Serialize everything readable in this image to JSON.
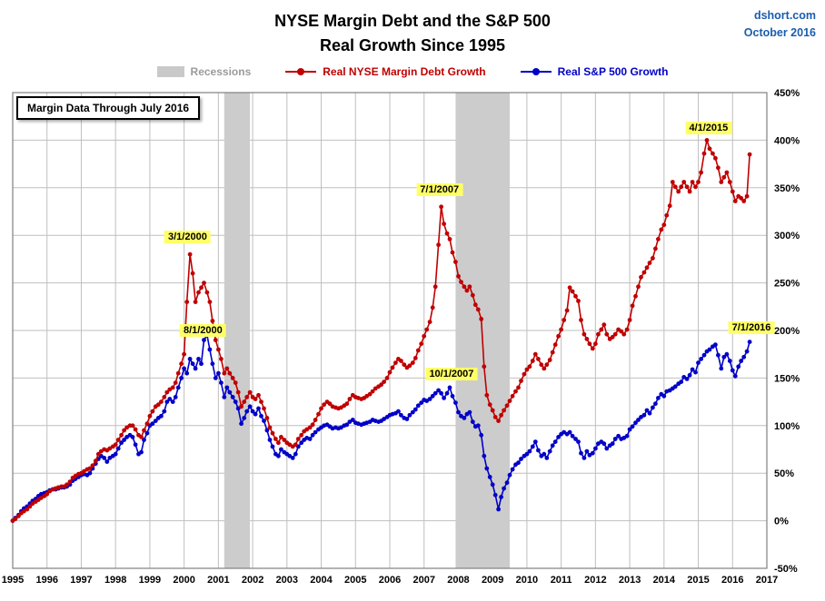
{
  "header": {
    "title_line1": "NYSE Margin Debt and the S&P 500",
    "title_line2": "Real Growth Since 1995",
    "source_site": "dshort.com",
    "source_date": "October 2016"
  },
  "legend": {
    "recessions_label": "Recessions",
    "margin_label": "Real NYSE Margin Debt Growth",
    "sp500_label": "Real S&P 500 Growth"
  },
  "callout_box": "Margin Data Through July 2016",
  "colors": {
    "margin_series": "#C00000",
    "sp500_series": "#0000C8",
    "recession_band": "#CCCCCC",
    "gridline": "#BFBFBF",
    "plot_border": "#808080",
    "annotation_bg": "#FFFF66",
    "source_text": "#1A5DAD"
  },
  "chart_data": {
    "type": "line",
    "title": "NYSE Margin Debt and the S&P 500 — Real Growth Since 1995",
    "xlabel": "",
    "ylabel": "",
    "grid": true,
    "legend_position": "top",
    "xlim": [
      1995,
      2017
    ],
    "ylim": [
      -50,
      450
    ],
    "y_tick_step": 50,
    "y_tick_suffix": "%",
    "y_axis_side": "right",
    "x_ticks": [
      1995,
      1996,
      1997,
      1998,
      1999,
      2000,
      2001,
      2002,
      2003,
      2004,
      2005,
      2006,
      2007,
      2008,
      2009,
      2010,
      2011,
      2012,
      2013,
      2014,
      2015,
      2016,
      2017
    ],
    "recessions": [
      [
        2001.17,
        2001.92
      ],
      [
        2007.92,
        2009.5
      ]
    ],
    "columns": [
      "year_decimal",
      "real_margin_debt_growth_pct",
      "real_sp500_growth_pct"
    ],
    "series": [
      {
        "name": "Real NYSE Margin Debt Growth",
        "color": "#C00000",
        "column": 1
      },
      {
        "name": "Real S&P 500 Growth",
        "color": "#0000C8",
        "column": 2
      }
    ],
    "annotations": [
      {
        "label": "3/1/2000",
        "x": 2000.1,
        "y": 298
      },
      {
        "label": "8/1/2000",
        "x": 2000.55,
        "y": 200
      },
      {
        "label": "7/1/2007",
        "x": 2007.45,
        "y": 348
      },
      {
        "label": "10/1/2007",
        "x": 2007.8,
        "y": 154
      },
      {
        "label": "4/1/2015",
        "x": 2015.3,
        "y": 413
      },
      {
        "label": "7/1/2016",
        "x": 2016.55,
        "y": 203
      }
    ],
    "rows": [
      [
        1995.0,
        0,
        0
      ],
      [
        1995.08,
        2,
        3
      ],
      [
        1995.17,
        5,
        6
      ],
      [
        1995.25,
        8,
        10
      ],
      [
        1995.33,
        10,
        13
      ],
      [
        1995.42,
        12,
        15
      ],
      [
        1995.5,
        15,
        18
      ],
      [
        1995.58,
        18,
        21
      ],
      [
        1995.67,
        20,
        23
      ],
      [
        1995.75,
        22,
        26
      ],
      [
        1995.83,
        24,
        28
      ],
      [
        1995.92,
        26,
        29
      ],
      [
        1996.0,
        28,
        30
      ],
      [
        1996.08,
        31,
        32
      ],
      [
        1996.17,
        33,
        33
      ],
      [
        1996.25,
        34,
        33
      ],
      [
        1996.33,
        35,
        34
      ],
      [
        1996.42,
        36,
        35
      ],
      [
        1996.5,
        36,
        35
      ],
      [
        1996.58,
        38,
        36
      ],
      [
        1996.67,
        41,
        38
      ],
      [
        1996.75,
        45,
        42
      ],
      [
        1996.83,
        47,
        44
      ],
      [
        1996.92,
        49,
        46
      ],
      [
        1997.0,
        50,
        48
      ],
      [
        1997.08,
        52,
        49
      ],
      [
        1997.17,
        54,
        48
      ],
      [
        1997.25,
        55,
        50
      ],
      [
        1997.33,
        58,
        55
      ],
      [
        1997.42,
        63,
        60
      ],
      [
        1997.5,
        70,
        65
      ],
      [
        1997.58,
        73,
        68
      ],
      [
        1997.67,
        75,
        66
      ],
      [
        1997.75,
        74,
        62
      ],
      [
        1997.83,
        76,
        66
      ],
      [
        1997.92,
        78,
        68
      ],
      [
        1998.0,
        80,
        70
      ],
      [
        1998.08,
        85,
        76
      ],
      [
        1998.17,
        90,
        82
      ],
      [
        1998.25,
        95,
        85
      ],
      [
        1998.33,
        98,
        88
      ],
      [
        1998.42,
        100,
        90
      ],
      [
        1998.5,
        100,
        88
      ],
      [
        1998.58,
        96,
        80
      ],
      [
        1998.67,
        90,
        70
      ],
      [
        1998.75,
        88,
        72
      ],
      [
        1998.83,
        95,
        85
      ],
      [
        1998.92,
        102,
        92
      ],
      [
        1999.0,
        110,
        100
      ],
      [
        1999.08,
        115,
        102
      ],
      [
        1999.17,
        120,
        105
      ],
      [
        1999.25,
        122,
        108
      ],
      [
        1999.33,
        125,
        110
      ],
      [
        1999.42,
        130,
        115
      ],
      [
        1999.5,
        135,
        125
      ],
      [
        1999.58,
        138,
        128
      ],
      [
        1999.67,
        140,
        125
      ],
      [
        1999.75,
        145,
        130
      ],
      [
        1999.83,
        155,
        140
      ],
      [
        1999.92,
        165,
        150
      ],
      [
        2000.0,
        175,
        160
      ],
      [
        2000.08,
        230,
        155
      ],
      [
        2000.17,
        280,
        170
      ],
      [
        2000.25,
        260,
        165
      ],
      [
        2000.33,
        230,
        160
      ],
      [
        2000.42,
        240,
        170
      ],
      [
        2000.5,
        245,
        165
      ],
      [
        2000.58,
        250,
        190
      ],
      [
        2000.67,
        240,
        195
      ],
      [
        2000.75,
        230,
        180
      ],
      [
        2000.83,
        210,
        165
      ],
      [
        2000.92,
        190,
        150
      ],
      [
        2001.0,
        180,
        155
      ],
      [
        2001.08,
        170,
        145
      ],
      [
        2001.17,
        155,
        130
      ],
      [
        2001.25,
        160,
        140
      ],
      [
        2001.33,
        155,
        135
      ],
      [
        2001.42,
        150,
        130
      ],
      [
        2001.5,
        145,
        125
      ],
      [
        2001.58,
        135,
        118
      ],
      [
        2001.67,
        120,
        102
      ],
      [
        2001.75,
        125,
        108
      ],
      [
        2001.83,
        130,
        115
      ],
      [
        2001.92,
        135,
        120
      ],
      [
        2002.0,
        130,
        115
      ],
      [
        2002.08,
        128,
        112
      ],
      [
        2002.17,
        132,
        118
      ],
      [
        2002.25,
        125,
        110
      ],
      [
        2002.33,
        118,
        105
      ],
      [
        2002.42,
        108,
        95
      ],
      [
        2002.5,
        98,
        85
      ],
      [
        2002.58,
        92,
        78
      ],
      [
        2002.67,
        86,
        70
      ],
      [
        2002.75,
        82,
        68
      ],
      [
        2002.83,
        88,
        75
      ],
      [
        2002.92,
        85,
        72
      ],
      [
        2003.0,
        82,
        70
      ],
      [
        2003.08,
        80,
        68
      ],
      [
        2003.17,
        78,
        66
      ],
      [
        2003.25,
        80,
        70
      ],
      [
        2003.33,
        86,
        78
      ],
      [
        2003.42,
        90,
        82
      ],
      [
        2003.5,
        94,
        85
      ],
      [
        2003.58,
        96,
        87
      ],
      [
        2003.67,
        98,
        86
      ],
      [
        2003.75,
        101,
        90
      ],
      [
        2003.83,
        106,
        93
      ],
      [
        2003.92,
        112,
        96
      ],
      [
        2004.0,
        118,
        98
      ],
      [
        2004.08,
        122,
        100
      ],
      [
        2004.17,
        125,
        101
      ],
      [
        2004.25,
        123,
        99
      ],
      [
        2004.33,
        120,
        97
      ],
      [
        2004.42,
        119,
        98
      ],
      [
        2004.5,
        118,
        97
      ],
      [
        2004.58,
        119,
        98
      ],
      [
        2004.67,
        121,
        100
      ],
      [
        2004.75,
        123,
        101
      ],
      [
        2004.83,
        128,
        104
      ],
      [
        2004.92,
        132,
        106
      ],
      [
        2005.0,
        130,
        103
      ],
      [
        2005.08,
        129,
        102
      ],
      [
        2005.17,
        128,
        101
      ],
      [
        2005.25,
        129,
        102
      ],
      [
        2005.33,
        131,
        103
      ],
      [
        2005.42,
        133,
        104
      ],
      [
        2005.5,
        136,
        106
      ],
      [
        2005.58,
        139,
        105
      ],
      [
        2005.67,
        141,
        104
      ],
      [
        2005.75,
        143,
        105
      ],
      [
        2005.83,
        146,
        107
      ],
      [
        2005.92,
        150,
        109
      ],
      [
        2006.0,
        156,
        111
      ],
      [
        2006.08,
        161,
        112
      ],
      [
        2006.17,
        166,
        113
      ],
      [
        2006.25,
        170,
        115
      ],
      [
        2006.33,
        168,
        111
      ],
      [
        2006.42,
        164,
        108
      ],
      [
        2006.5,
        161,
        107
      ],
      [
        2006.58,
        163,
        111
      ],
      [
        2006.67,
        166,
        114
      ],
      [
        2006.75,
        171,
        117
      ],
      [
        2006.83,
        179,
        121
      ],
      [
        2006.92,
        186,
        124
      ],
      [
        2007.0,
        194,
        127
      ],
      [
        2007.08,
        201,
        126
      ],
      [
        2007.17,
        209,
        128
      ],
      [
        2007.25,
        224,
        131
      ],
      [
        2007.33,
        246,
        134
      ],
      [
        2007.42,
        290,
        137
      ],
      [
        2007.5,
        330,
        134
      ],
      [
        2007.58,
        312,
        129
      ],
      [
        2007.67,
        302,
        134
      ],
      [
        2007.75,
        296,
        140
      ],
      [
        2007.83,
        282,
        131
      ],
      [
        2007.92,
        272,
        124
      ],
      [
        2008.0,
        257,
        114
      ],
      [
        2008.08,
        251,
        110
      ],
      [
        2008.17,
        246,
        108
      ],
      [
        2008.25,
        242,
        112
      ],
      [
        2008.33,
        246,
        114
      ],
      [
        2008.42,
        237,
        104
      ],
      [
        2008.5,
        227,
        99
      ],
      [
        2008.58,
        222,
        100
      ],
      [
        2008.67,
        212,
        90
      ],
      [
        2008.75,
        162,
        68
      ],
      [
        2008.83,
        132,
        55
      ],
      [
        2008.92,
        122,
        46
      ],
      [
        2009.0,
        116,
        38
      ],
      [
        2009.08,
        109,
        27
      ],
      [
        2009.17,
        105,
        12
      ],
      [
        2009.25,
        111,
        25
      ],
      [
        2009.33,
        116,
        34
      ],
      [
        2009.42,
        121,
        40
      ],
      [
        2009.5,
        126,
        48
      ],
      [
        2009.58,
        131,
        54
      ],
      [
        2009.67,
        136,
        59
      ],
      [
        2009.75,
        140,
        61
      ],
      [
        2009.83,
        147,
        65
      ],
      [
        2009.92,
        154,
        68
      ],
      [
        2010.0,
        159,
        70
      ],
      [
        2010.08,
        162,
        73
      ],
      [
        2010.17,
        168,
        78
      ],
      [
        2010.25,
        175,
        83
      ],
      [
        2010.33,
        170,
        74
      ],
      [
        2010.42,
        164,
        68
      ],
      [
        2010.5,
        160,
        70
      ],
      [
        2010.58,
        164,
        66
      ],
      [
        2010.67,
        169,
        73
      ],
      [
        2010.75,
        177,
        79
      ],
      [
        2010.83,
        185,
        83
      ],
      [
        2010.92,
        194,
        88
      ],
      [
        2011.0,
        201,
        91
      ],
      [
        2011.08,
        211,
        93
      ],
      [
        2011.17,
        221,
        91
      ],
      [
        2011.25,
        245,
        93
      ],
      [
        2011.33,
        241,
        89
      ],
      [
        2011.42,
        236,
        86
      ],
      [
        2011.5,
        231,
        83
      ],
      [
        2011.58,
        211,
        71
      ],
      [
        2011.67,
        196,
        66
      ],
      [
        2011.75,
        191,
        73
      ],
      [
        2011.83,
        186,
        69
      ],
      [
        2011.92,
        181,
        71
      ],
      [
        2012.0,
        186,
        76
      ],
      [
        2012.08,
        196,
        81
      ],
      [
        2012.17,
        201,
        83
      ],
      [
        2012.25,
        206,
        81
      ],
      [
        2012.33,
        196,
        76
      ],
      [
        2012.42,
        191,
        79
      ],
      [
        2012.5,
        193,
        81
      ],
      [
        2012.58,
        196,
        86
      ],
      [
        2012.67,
        201,
        89
      ],
      [
        2012.75,
        199,
        86
      ],
      [
        2012.83,
        196,
        87
      ],
      [
        2012.92,
        201,
        89
      ],
      [
        2013.0,
        211,
        96
      ],
      [
        2013.08,
        226,
        99
      ],
      [
        2013.17,
        236,
        103
      ],
      [
        2013.25,
        246,
        106
      ],
      [
        2013.33,
        256,
        109
      ],
      [
        2013.42,
        261,
        111
      ],
      [
        2013.5,
        266,
        116
      ],
      [
        2013.58,
        271,
        113
      ],
      [
        2013.67,
        276,
        119
      ],
      [
        2013.75,
        286,
        123
      ],
      [
        2013.83,
        296,
        129
      ],
      [
        2013.92,
        306,
        133
      ],
      [
        2014.0,
        311,
        131
      ],
      [
        2014.08,
        321,
        136
      ],
      [
        2014.17,
        331,
        137
      ],
      [
        2014.25,
        356,
        139
      ],
      [
        2014.33,
        351,
        141
      ],
      [
        2014.42,
        346,
        144
      ],
      [
        2014.5,
        351,
        146
      ],
      [
        2014.58,
        356,
        151
      ],
      [
        2014.67,
        351,
        149
      ],
      [
        2014.75,
        346,
        153
      ],
      [
        2014.83,
        356,
        159
      ],
      [
        2014.92,
        351,
        156
      ],
      [
        2015.0,
        356,
        166
      ],
      [
        2015.08,
        366,
        170
      ],
      [
        2015.17,
        386,
        174
      ],
      [
        2015.25,
        400,
        178
      ],
      [
        2015.33,
        391,
        180
      ],
      [
        2015.42,
        386,
        183
      ],
      [
        2015.5,
        381,
        185
      ],
      [
        2015.58,
        371,
        174
      ],
      [
        2015.67,
        356,
        160
      ],
      [
        2015.75,
        361,
        172
      ],
      [
        2015.83,
        366,
        175
      ],
      [
        2015.92,
        356,
        168
      ],
      [
        2016.0,
        346,
        158
      ],
      [
        2016.08,
        336,
        152
      ],
      [
        2016.17,
        341,
        162
      ],
      [
        2016.25,
        339,
        168
      ],
      [
        2016.33,
        336,
        172
      ],
      [
        2016.42,
        341,
        178
      ],
      [
        2016.5,
        385,
        188
      ]
    ]
  }
}
